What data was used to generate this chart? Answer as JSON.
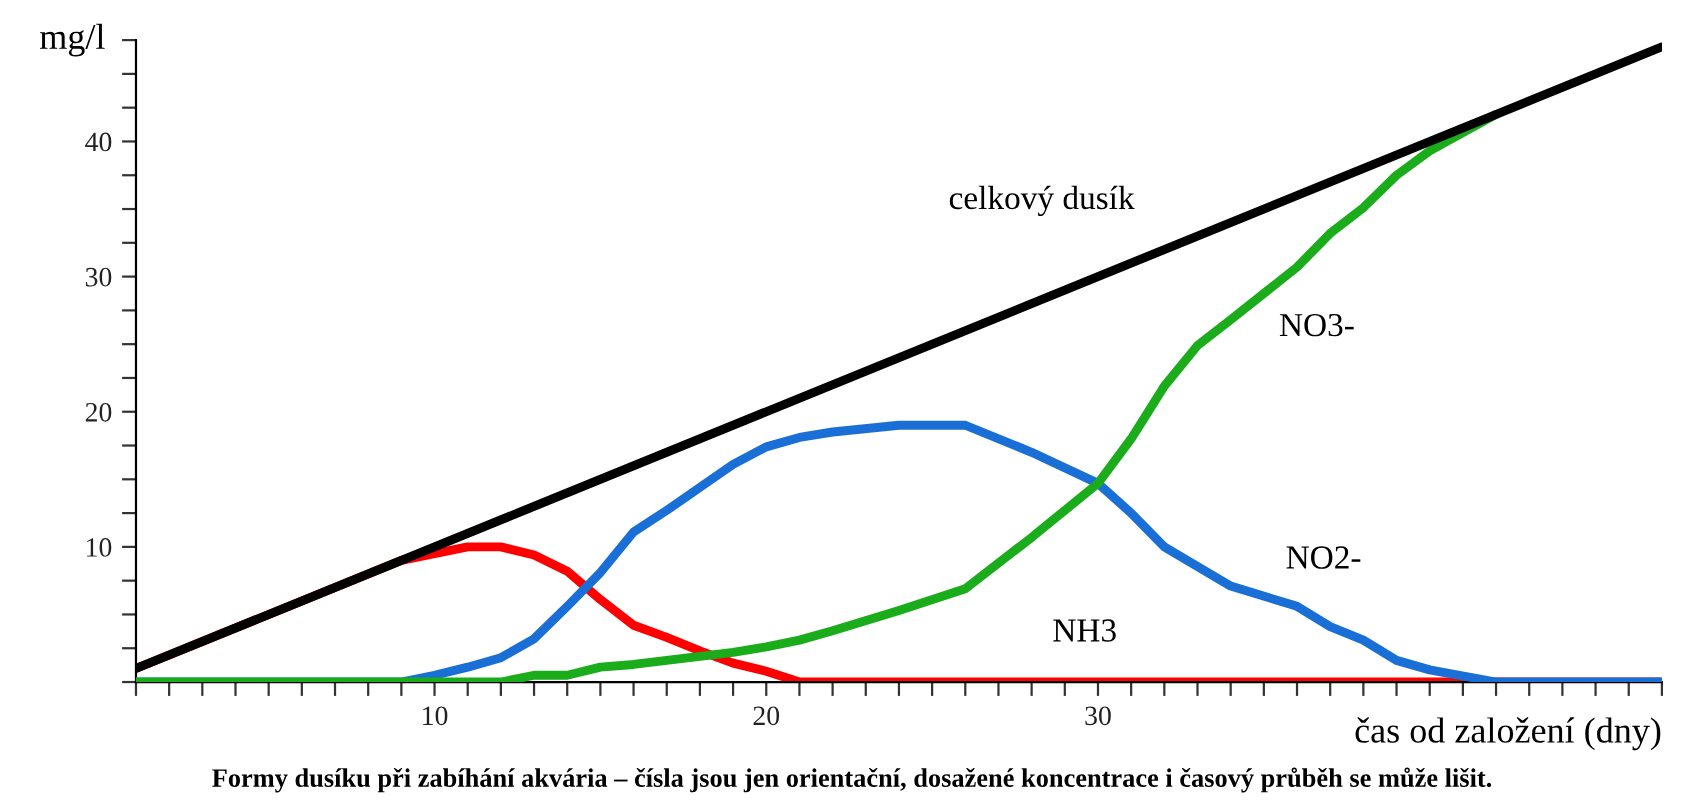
{
  "chart_data": {
    "type": "line",
    "ylabel": "mg/l",
    "xlabel": "čas od založení (dny)",
    "annotations": [
      "Formy dusíku při zabíhání akvária – čísla jsou jen orientační, dosažené koncentrace i časový průběh se může lišit."
    ],
    "xlim": [
      1,
      47
    ],
    "xticks": [
      {
        "value": 1,
        "label": null
      },
      {
        "value": 2,
        "label": null
      },
      {
        "value": 3,
        "label": null
      },
      {
        "value": 4,
        "label": null
      },
      {
        "value": 5,
        "label": null
      },
      {
        "value": 6,
        "label": null
      },
      {
        "value": 7,
        "label": null
      },
      {
        "value": 8,
        "label": null
      },
      {
        "value": 9,
        "label": null
      },
      10,
      {
        "value": 11,
        "label": null
      },
      {
        "value": 12,
        "label": null
      },
      {
        "value": 13,
        "label": null
      },
      {
        "value": 14,
        "label": null
      },
      {
        "value": 15,
        "label": null
      },
      {
        "value": 16,
        "label": null
      },
      {
        "value": 17,
        "label": null
      },
      {
        "value": 18,
        "label": null
      },
      {
        "value": 19,
        "label": null
      },
      20,
      {
        "value": 21,
        "label": null
      },
      {
        "value": 22,
        "label": null
      },
      {
        "value": 23,
        "label": null
      },
      {
        "value": 24,
        "label": null
      },
      {
        "value": 25,
        "label": null
      },
      {
        "value": 26,
        "label": null
      },
      {
        "value": 27,
        "label": null
      },
      {
        "value": 28,
        "label": null
      },
      {
        "value": 29,
        "label": null
      },
      30,
      {
        "value": 31,
        "label": null
      },
      {
        "value": 32,
        "label": null
      },
      {
        "value": 33,
        "label": null
      },
      {
        "value": 34,
        "label": null
      },
      {
        "value": 35,
        "label": null
      },
      {
        "value": 36,
        "label": null
      },
      {
        "value": 37,
        "label": null
      },
      {
        "value": 38,
        "label": null
      },
      {
        "value": 39,
        "label": null
      },
      {
        "value": 40,
        "label": null
      },
      {
        "value": 41,
        "label": null
      },
      {
        "value": 42,
        "label": null
      },
      {
        "value": 43,
        "label": null
      },
      {
        "value": 44,
        "label": null
      },
      {
        "value": 45,
        "label": null
      },
      {
        "value": 46,
        "label": null
      },
      {
        "value": 47,
        "label": null
      }
    ],
    "ylim": [
      0,
      47.5
    ],
    "yticks": [
      {
        "value": 0,
        "label": null
      },
      {
        "value": 2.5,
        "label": null
      },
      {
        "value": 5,
        "label": null
      },
      {
        "value": 7.5,
        "label": null
      },
      10,
      {
        "value": 12.5,
        "label": null
      },
      {
        "value": 15,
        "label": null
      },
      {
        "value": 17.5,
        "label": null
      },
      20,
      {
        "value": 22.5,
        "label": null
      },
      {
        "value": 25,
        "label": null
      },
      {
        "value": 27.5,
        "label": null
      },
      30,
      {
        "value": 32.5,
        "label": null
      },
      {
        "value": 35,
        "label": null
      },
      {
        "value": 37.5,
        "label": null
      },
      40,
      {
        "value": 42.5,
        "label": null
      },
      {
        "value": 45,
        "label": null
      },
      {
        "value": 47.5,
        "label": null
      }
    ],
    "grid": false,
    "legend": false,
    "marker": "none",
    "line_style": "solid",
    "series": [
      {
        "name": "NH3",
        "color": "#ff0000",
        "x": [
          1,
          9,
          11,
          12,
          13,
          14,
          15,
          16,
          17,
          18,
          19,
          20,
          21,
          47
        ],
        "values": [
          1,
          9,
          10,
          10,
          9.4,
          8.2,
          6.1,
          4.2,
          3.3,
          2.3,
          1.4,
          0.8,
          0,
          0
        ]
      },
      {
        "name": "NO2-",
        "color": "#1a6fd6",
        "x": [
          1,
          9,
          10,
          11,
          12,
          13,
          14,
          15,
          16,
          17,
          18,
          19,
          20,
          21,
          22,
          24,
          26,
          28,
          30,
          31,
          32,
          34,
          36,
          37,
          38,
          39,
          40,
          42,
          47
        ],
        "values": [
          0,
          0,
          0.5,
          1.1,
          1.8,
          3.2,
          5.6,
          8.1,
          11.1,
          12.7,
          14.4,
          16.1,
          17.4,
          18.1,
          18.5,
          19,
          19,
          17,
          14.7,
          12.5,
          10,
          7.1,
          5.6,
          4.1,
          3.1,
          1.6,
          0.9,
          0,
          0
        ]
      },
      {
        "name": "NO3-",
        "color": "#1aac1a",
        "x": [
          1,
          12,
          13,
          14,
          15,
          16,
          17,
          18,
          19,
          20,
          21,
          22,
          24,
          26,
          28,
          30,
          31,
          32,
          33,
          34,
          36,
          37,
          38,
          39,
          40,
          42
        ],
        "values": [
          0,
          0,
          0.5,
          0.5,
          1.1,
          1.3,
          1.6,
          1.9,
          2.2,
          2.6,
          3.1,
          3.8,
          5.3,
          6.9,
          10.7,
          14.7,
          18,
          21.9,
          24.9,
          26.8,
          30.7,
          33.2,
          35.1,
          37.5,
          39.3,
          42
        ]
      },
      {
        "name": "celkový dusík",
        "color": "#000000",
        "x": [
          1,
          47
        ],
        "values": [
          1,
          47
        ]
      }
    ]
  }
}
